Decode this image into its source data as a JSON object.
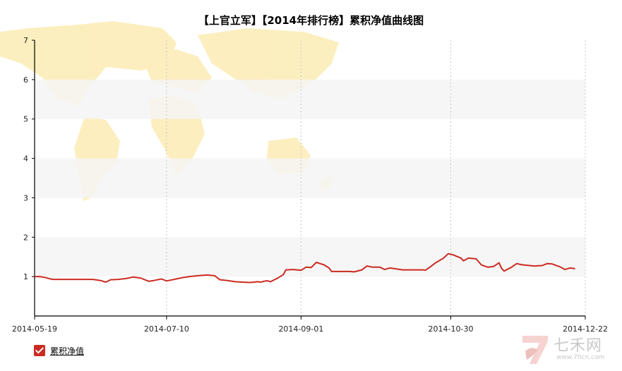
{
  "chart_data": {
    "type": "line",
    "title": "【上官立军】【2014年排行榜】累积净值曲线图",
    "xlabel": "",
    "ylabel": "",
    "x_tick_labels": [
      "2014-05-19",
      "2014-07-10",
      "2014-09-01",
      "2014-10-30",
      "2014-12-22"
    ],
    "y_tick_labels": [
      "1",
      "2",
      "3",
      "4",
      "5",
      "6",
      "7"
    ],
    "ylim": [
      0,
      7
    ],
    "xlim": [
      "2014-05-19",
      "2014-12-22"
    ],
    "grid": "horizontal alternating bands, vertical dotted lines at x ticks",
    "legend_position": "bottom-left",
    "series": [
      {
        "name": "累积净值",
        "color": "#cc2b22",
        "points": [
          [
            "2014-05-19",
            1.0
          ],
          [
            "2014-05-21",
            1.0
          ],
          [
            "2014-05-23",
            0.98
          ],
          [
            "2014-05-26",
            0.93
          ],
          [
            "2014-05-30",
            0.93
          ],
          [
            "2014-06-03",
            0.93
          ],
          [
            "2014-06-07",
            0.93
          ],
          [
            "2014-06-11",
            0.93
          ],
          [
            "2014-06-14",
            0.9
          ],
          [
            "2014-06-16",
            0.86
          ],
          [
            "2014-06-18",
            0.92
          ],
          [
            "2014-06-21",
            0.93
          ],
          [
            "2014-06-24",
            0.95
          ],
          [
            "2014-06-27",
            0.99
          ],
          [
            "2014-06-30",
            0.96
          ],
          [
            "2014-07-01",
            0.93
          ],
          [
            "2014-07-03",
            0.88
          ],
          [
            "2014-07-05",
            0.9
          ],
          [
            "2014-07-08",
            0.94
          ],
          [
            "2014-07-10",
            0.89
          ],
          [
            "2014-07-13",
            0.93
          ],
          [
            "2014-07-16",
            0.97
          ],
          [
            "2014-07-19",
            1.0
          ],
          [
            "2014-07-22",
            1.02
          ],
          [
            "2014-07-26",
            1.04
          ],
          [
            "2014-07-29",
            1.02
          ],
          [
            "2014-07-31",
            0.92
          ],
          [
            "2014-08-03",
            0.9
          ],
          [
            "2014-08-06",
            0.87
          ],
          [
            "2014-08-09",
            0.86
          ],
          [
            "2014-08-12",
            0.85
          ],
          [
            "2014-08-15",
            0.87
          ],
          [
            "2014-08-16",
            0.86
          ],
          [
            "2014-08-18",
            0.89
          ],
          [
            "2014-08-19",
            0.89
          ],
          [
            "2014-08-20",
            0.87
          ],
          [
            "2014-08-23",
            0.97
          ],
          [
            "2014-08-25",
            1.05
          ],
          [
            "2014-08-26",
            1.17
          ],
          [
            "2014-08-29",
            1.18
          ],
          [
            "2014-09-01",
            1.16
          ],
          [
            "2014-09-03",
            1.24
          ],
          [
            "2014-09-05",
            1.23
          ],
          [
            "2014-09-07",
            1.36
          ],
          [
            "2014-09-10",
            1.3
          ],
          [
            "2014-09-12",
            1.22
          ],
          [
            "2014-09-13",
            1.13
          ],
          [
            "2014-09-17",
            1.13
          ],
          [
            "2014-09-20",
            1.13
          ],
          [
            "2014-09-22",
            1.12
          ],
          [
            "2014-09-25",
            1.17
          ],
          [
            "2014-09-27",
            1.27
          ],
          [
            "2014-09-29",
            1.24
          ],
          [
            "2014-10-02",
            1.24
          ],
          [
            "2014-10-04",
            1.18
          ],
          [
            "2014-10-06",
            1.22
          ],
          [
            "2014-10-08",
            1.2
          ],
          [
            "2014-10-11",
            1.17
          ],
          [
            "2014-10-14",
            1.17
          ],
          [
            "2014-10-17",
            1.17
          ],
          [
            "2014-10-19",
            1.17
          ],
          [
            "2014-10-20",
            1.16
          ],
          [
            "2014-10-22",
            1.25
          ],
          [
            "2014-10-24",
            1.35
          ],
          [
            "2014-10-27",
            1.46
          ],
          [
            "2014-10-29",
            1.58
          ],
          [
            "2014-10-31",
            1.55
          ],
          [
            "2014-11-03",
            1.47
          ],
          [
            "2014-11-04",
            1.4
          ],
          [
            "2014-11-06",
            1.47
          ],
          [
            "2014-11-09",
            1.45
          ],
          [
            "2014-11-11",
            1.3
          ],
          [
            "2014-11-13",
            1.25
          ],
          [
            "2014-11-14",
            1.24
          ],
          [
            "2014-11-16",
            1.26
          ],
          [
            "2014-11-18",
            1.35
          ],
          [
            "2014-11-19",
            1.21
          ],
          [
            "2014-11-20",
            1.14
          ],
          [
            "2014-11-23",
            1.24
          ],
          [
            "2014-11-25",
            1.33
          ],
          [
            "2014-11-27",
            1.3
          ],
          [
            "2014-11-30",
            1.28
          ],
          [
            "2014-12-02",
            1.27
          ],
          [
            "2014-12-05",
            1.28
          ],
          [
            "2014-12-07",
            1.33
          ],
          [
            "2014-12-09",
            1.32
          ],
          [
            "2014-12-11",
            1.27
          ],
          [
            "2014-12-12",
            1.25
          ],
          [
            "2014-12-14",
            1.18
          ],
          [
            "2014-12-16",
            1.22
          ],
          [
            "2014-12-18",
            1.2
          ]
        ]
      }
    ]
  },
  "legend": {
    "label": "累积净值"
  },
  "watermark": {
    "brand": "七禾网",
    "url": "www.7hcn.com"
  },
  "colors": {
    "line": "#cc2b22",
    "axis": "#000000",
    "band": "#f5f5f5",
    "grid_dotted": "#c8c8c8",
    "map": "#fbe9a9"
  }
}
